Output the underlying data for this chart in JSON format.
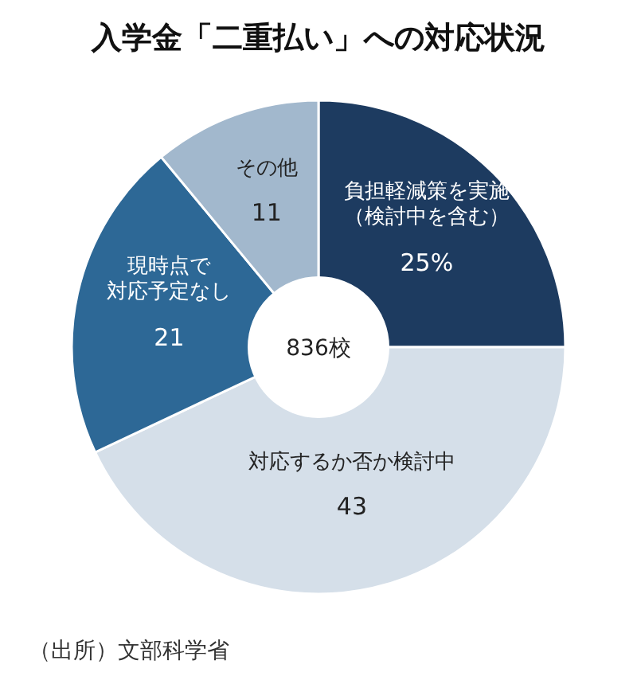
{
  "chart_data": {
    "type": "donut",
    "title": "入学金「二重払い」への対応状況",
    "categories": [
      "負担軽減策を実施（検討中を含む）",
      "対応するか否か検討中",
      "現時点で対応予定なし",
      "その他"
    ],
    "values": [
      25,
      43,
      21,
      11
    ],
    "colors": [
      "#1d3b60",
      "#d5dfe9",
      "#2d6896",
      "#a2b8cd"
    ],
    "value_labels": [
      "25%",
      "43",
      "21",
      "11"
    ],
    "annotations": [
      "836校",
      "（出所）文部科学省"
    ]
  }
}
